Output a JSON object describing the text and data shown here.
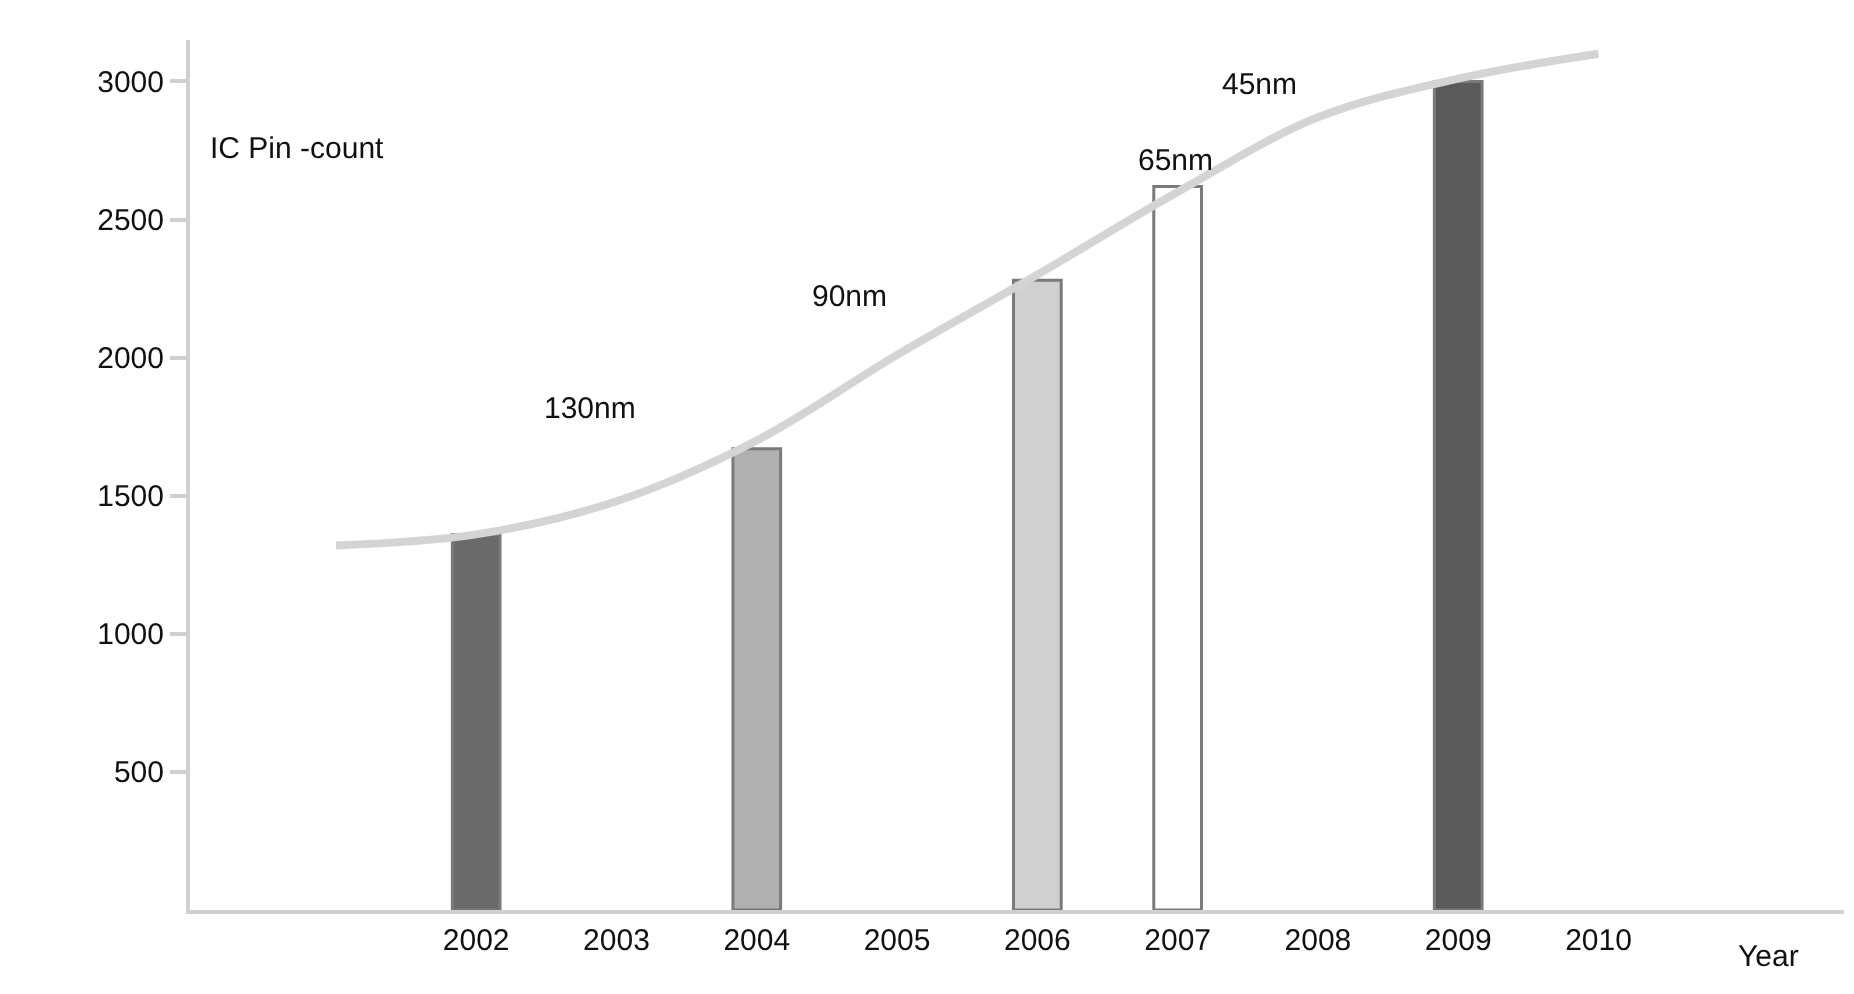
{
  "chart_data": {
    "type": "bar",
    "ylabel": "IC Pin -count",
    "xlabel": "Year",
    "categories": [
      null,
      "2002",
      "2003",
      "2004",
      "2005",
      "2006",
      "2007",
      "2008",
      "2009",
      "2010"
    ],
    "series": [
      {
        "colors": [
          "#6a6a6a",
          "#6a6a6a",
          "#6a6a6a",
          "#b0b0b0",
          "#6a6a6a",
          "#d0d0d0",
          "#ffffff",
          "#6a6a6a",
          "#5a5a5a",
          "#6a6a6a"
        ],
        "values": [
          null,
          1360,
          null,
          1670,
          null,
          2280,
          2620,
          null,
          3000,
          null
        ]
      },
      {
        "type": "line",
        "color": "#d4d4d4",
        "values": [
          1320,
          1360,
          1480,
          1700,
          2010,
          2300,
          2600,
          2870,
          3010,
          3100
        ]
      }
    ],
    "annotations": [
      "130nm",
      "90nm",
      "65nm",
      "45nm"
    ],
    "ylim": [
      0,
      3150
    ],
    "yticks": [
      500,
      1000,
      1500,
      2000,
      2500,
      3000
    ],
    "grid": false,
    "marker": "none",
    "line_style": "solid"
  }
}
